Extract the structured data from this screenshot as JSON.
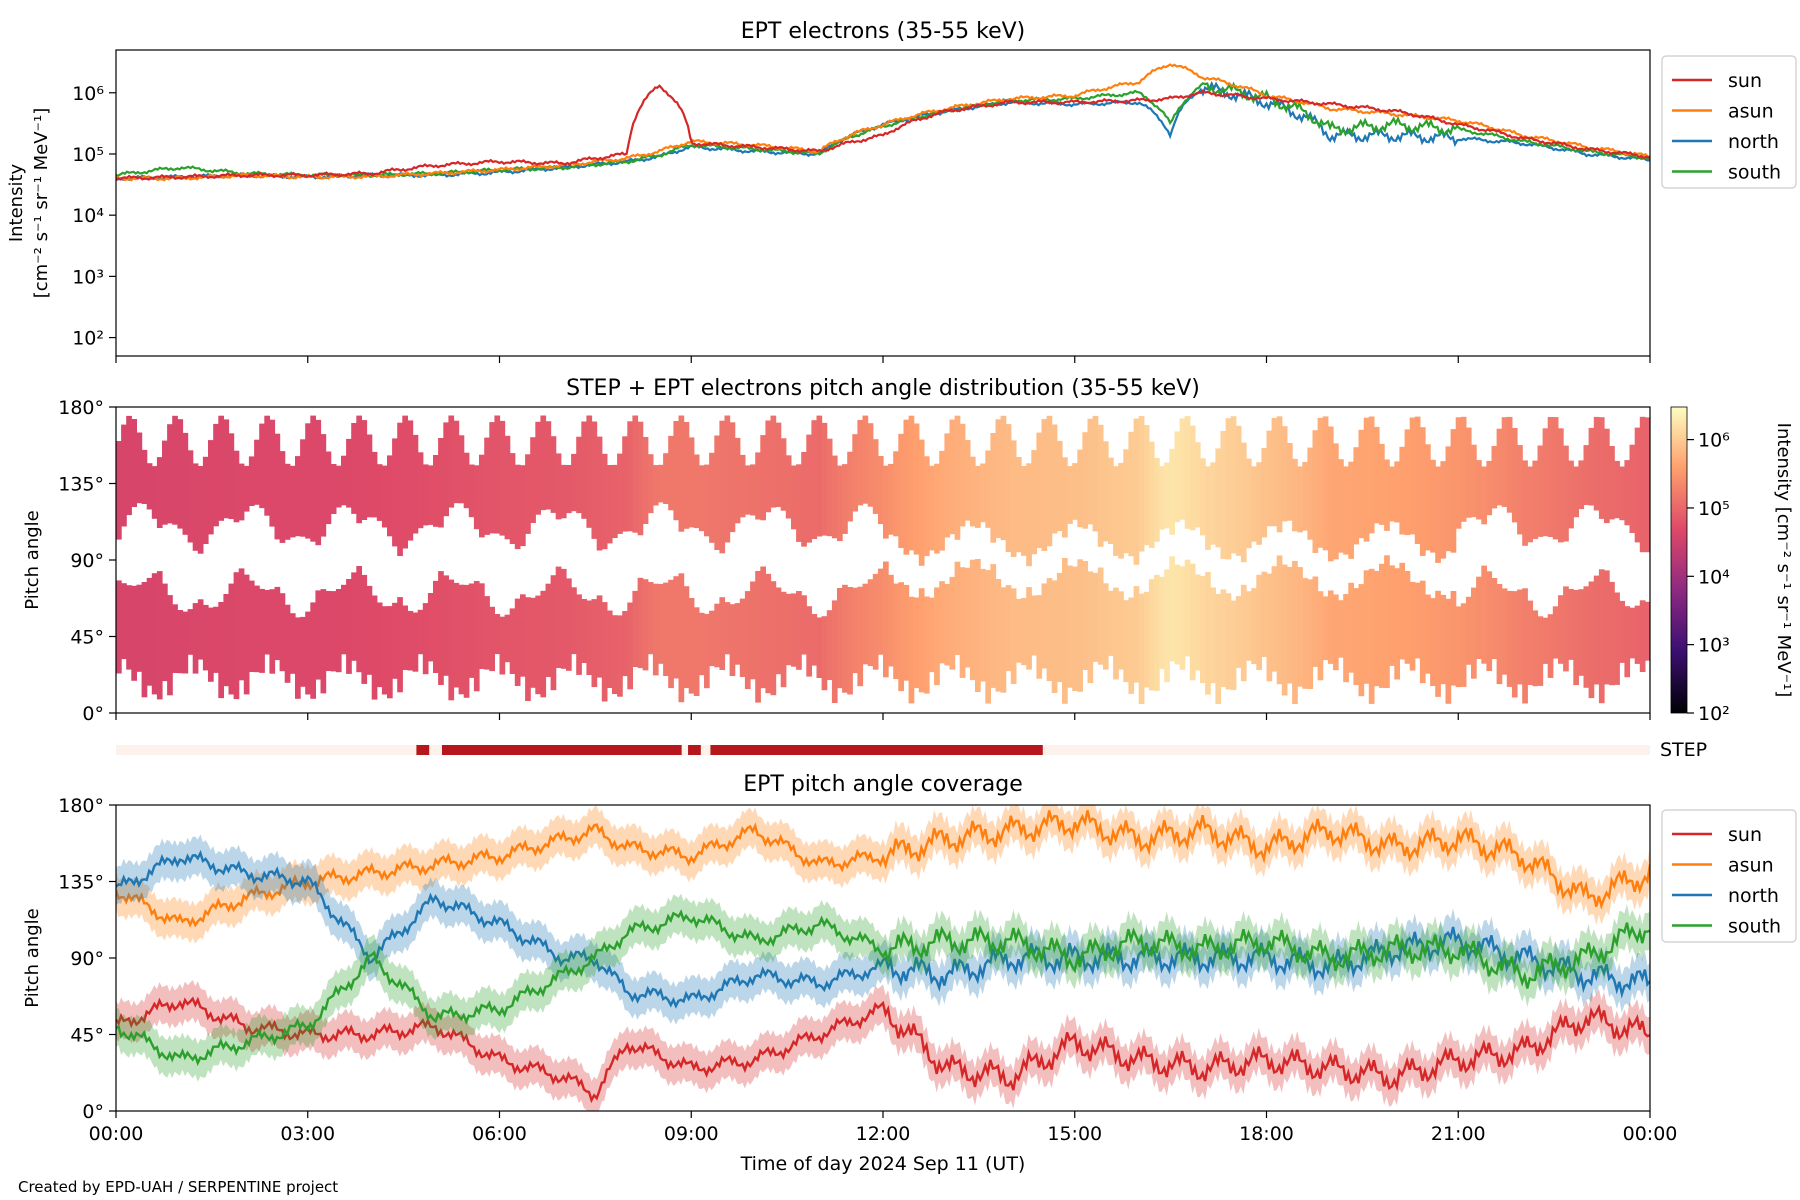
{
  "footer": "Created by EPD-UAH / SERPENTINE project",
  "xlabel": "Time of day 2024 Sep 11 (UT)",
  "xticks": [
    "00:00",
    "03:00",
    "06:00",
    "09:00",
    "12:00",
    "15:00",
    "18:00",
    "21:00",
    "00:00"
  ],
  "series_colors": {
    "sun": "#d62728",
    "asun": "#ff7f0e",
    "north": "#1f77b4",
    "south": "#2ca02c"
  },
  "panel1": {
    "title": "EPT electrons (35-55 keV)",
    "ylabel_line1": "Intensity",
    "ylabel_line2": "[cm⁻² s⁻¹ sr⁻¹ MeV⁻¹]",
    "yticks": [
      "10²",
      "10³",
      "10⁴",
      "10⁵",
      "10⁶"
    ],
    "legend": [
      "sun",
      "asun",
      "north",
      "south"
    ]
  },
  "panel2": {
    "title": "STEP + EPT electrons pitch angle distribution (35-55 keV)",
    "ylabel": "Pitch angle",
    "yticks": [
      "0°",
      "45°",
      "90°",
      "135°",
      "180°"
    ],
    "colorbar_ticks": [
      "10²",
      "10³",
      "10⁴",
      "10⁵",
      "10⁶"
    ],
    "colorbar_label": "Intensity [cm⁻² s⁻¹ sr⁻¹ MeV⁻¹]"
  },
  "step": {
    "label": "STEP",
    "segments_hours": [
      [
        4.7,
        4.9
      ],
      [
        5.1,
        8.85
      ],
      [
        8.95,
        9.15
      ],
      [
        9.3,
        14.5
      ]
    ]
  },
  "panel3": {
    "title": "EPT pitch angle coverage",
    "ylabel": "Pitch angle",
    "yticks": [
      "0°",
      "45°",
      "90°",
      "135°",
      "180°"
    ],
    "legend": [
      "sun",
      "asun",
      "north",
      "south"
    ]
  },
  "chart_data": [
    {
      "type": "line",
      "title": "EPT electrons (35-55 keV)",
      "xlabel": "",
      "ylabel": "Intensity [cm⁻² s⁻¹ sr⁻¹ MeV⁻¹]",
      "yscale": "log",
      "ylim": [
        50,
        5000000
      ],
      "xlim_hours": [
        0,
        24
      ],
      "x_hours": [
        0,
        1,
        2,
        3,
        4,
        5,
        6,
        7,
        8,
        8.5,
        9,
        10,
        11,
        12,
        13,
        14,
        15,
        16,
        16.5,
        17,
        18,
        19,
        20,
        21,
        22,
        23,
        24
      ],
      "series": [
        {
          "name": "sun",
          "values": [
            40000,
            42000,
            45000,
            45000,
            48000,
            65000,
            75000,
            70000,
            100000,
            1300000,
            150000,
            130000,
            110000,
            200000,
            500000,
            700000,
            700000,
            750000,
            800000,
            1000000,
            800000,
            650000,
            500000,
            300000,
            180000,
            120000,
            90000
          ]
        },
        {
          "name": "asun",
          "values": [
            40000,
            40000,
            45000,
            42000,
            43000,
            48000,
            55000,
            65000,
            85000,
            110000,
            160000,
            140000,
            110000,
            300000,
            550000,
            800000,
            900000,
            1500000,
            3000000,
            1800000,
            900000,
            550000,
            450000,
            350000,
            200000,
            130000,
            90000
          ]
        },
        {
          "name": "north",
          "values": [
            40000,
            42000,
            45000,
            42000,
            45000,
            45000,
            50000,
            60000,
            75000,
            90000,
            130000,
            110000,
            100000,
            300000,
            500000,
            700000,
            650000,
            700000,
            200000,
            1200000,
            700000,
            200000,
            200000,
            180000,
            150000,
            100000,
            80000
          ]
        },
        {
          "name": "south",
          "values": [
            45000,
            60000,
            48000,
            45000,
            45000,
            48000,
            55000,
            60000,
            75000,
            95000,
            140000,
            120000,
            100000,
            280000,
            500000,
            750000,
            800000,
            1000000,
            300000,
            1300000,
            800000,
            250000,
            300000,
            250000,
            160000,
            110000,
            85000
          ]
        }
      ]
    },
    {
      "type": "heatmap",
      "title": "STEP + EPT electrons pitch angle distribution (35-55 keV)",
      "ylabel": "Pitch angle",
      "ylim_deg": [
        0,
        180
      ],
      "xlim_hours": [
        0,
        24
      ],
      "colorscale": "log",
      "clim": [
        100,
        3000000
      ],
      "colorbar_label": "Intensity [cm⁻² s⁻¹ sr⁻¹ MeV⁻¹]",
      "x_hours": [
        0,
        1,
        2,
        3,
        4,
        5,
        6,
        7,
        8,
        8.5,
        9,
        10,
        11,
        12,
        13,
        14,
        15,
        16,
        16.5,
        17,
        18,
        19,
        20,
        21,
        22,
        23,
        24
      ],
      "intensity": [
        40000,
        42000,
        45000,
        45000,
        48000,
        55000,
        65000,
        70000,
        90000,
        150000,
        150000,
        130000,
        110000,
        250000,
        500000,
        700000,
        750000,
        1000000,
        1800000,
        1300000,
        800000,
        450000,
        400000,
        300000,
        180000,
        120000,
        90000
      ]
    },
    {
      "type": "line",
      "title": "EPT pitch angle coverage",
      "ylabel": "Pitch angle",
      "ylim_deg": [
        0,
        180
      ],
      "xlim_hours": [
        0,
        24
      ],
      "x_hours": [
        0,
        1,
        2,
        3,
        4,
        5,
        6,
        7,
        7.5,
        8,
        9,
        10,
        11,
        12,
        13,
        14,
        15,
        16,
        17,
        18,
        19,
        20,
        21,
        22,
        23,
        24
      ],
      "series": [
        {
          "name": "sun",
          "values": [
            50,
            65,
            50,
            45,
            45,
            50,
            30,
            20,
            10,
            40,
            25,
            30,
            45,
            60,
            25,
            20,
            40,
            30,
            25,
            30,
            25,
            20,
            30,
            35,
            55,
            45
          ]
        },
        {
          "name": "asun",
          "values": [
            130,
            110,
            125,
            135,
            140,
            145,
            150,
            160,
            165,
            155,
            150,
            165,
            145,
            150,
            160,
            165,
            170,
            160,
            165,
            155,
            165,
            155,
            160,
            150,
            125,
            140
          ]
        },
        {
          "name": "north",
          "values": [
            130,
            150,
            140,
            135,
            90,
            125,
            110,
            90,
            90,
            70,
            65,
            80,
            75,
            85,
            80,
            90,
            90,
            90,
            90,
            90,
            85,
            95,
            100,
            90,
            80,
            75
          ]
        },
        {
          "name": "south",
          "values": [
            50,
            30,
            40,
            50,
            90,
            55,
            60,
            80,
            90,
            105,
            115,
            100,
            110,
            95,
            100,
            100,
            90,
            100,
            95,
            100,
            90,
            95,
            95,
            80,
            90,
            110
          ]
        }
      ]
    }
  ]
}
